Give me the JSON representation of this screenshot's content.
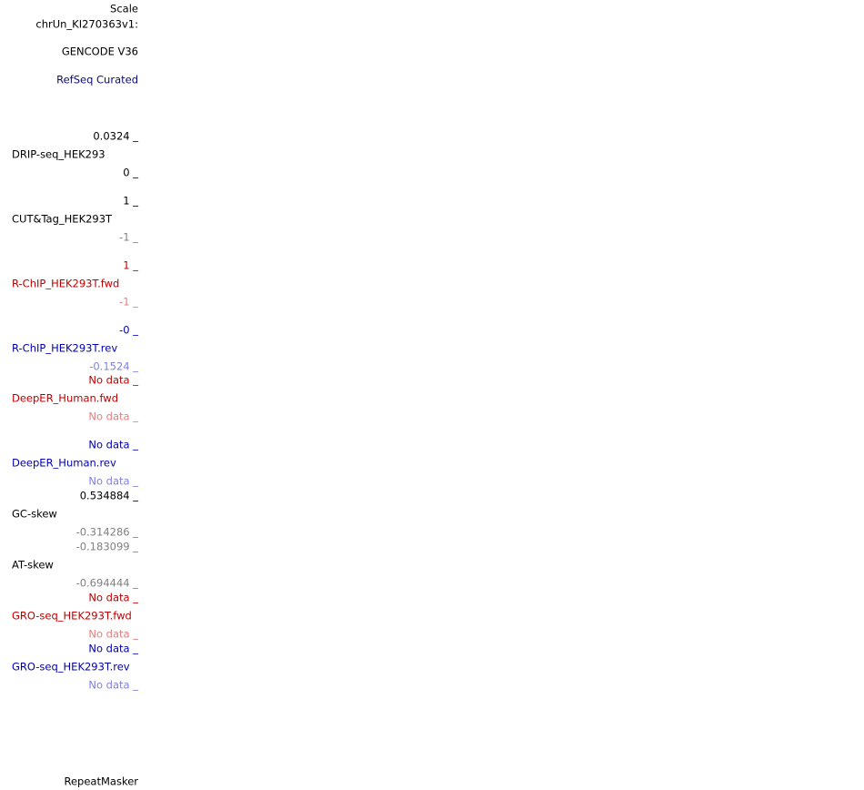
{
  "header": {
    "scale": "Scale",
    "chrom": "chrUn_KI270363v1:"
  },
  "gene_tracks": [
    {
      "name": "GENCODE V36",
      "color": "#000000"
    },
    {
      "name": "RefSeq Curated",
      "color": "#0c0c78"
    }
  ],
  "signal_tracks": [
    {
      "name": "DRIP-seq_HEK293",
      "max": "0.0324 _",
      "min": "0 _",
      "color": "#000000",
      "min_color": "#000000"
    },
    {
      "name": "CUT&Tag_HEK293T",
      "max": "1 _",
      "min": "-1 _",
      "color": "#000000",
      "min_color": "#808080"
    },
    {
      "name": "R-ChIP_HEK293T.fwd",
      "max": "1 _",
      "min": "-1 _",
      "color": "#c00000",
      "min_color": "#e08080"
    },
    {
      "name": "R-ChIP_HEK293T.rev",
      "max": "-0 _",
      "min": "-0.1524 _",
      "color": "#0000b0",
      "min_color": "#8080e0"
    },
    {
      "name": "DeepER_Human.fwd",
      "max": "No data _",
      "min": "No data _",
      "color": "#c00000",
      "min_color": "#e08080"
    },
    {
      "name": "DeepER_Human.rev",
      "max": "No data _",
      "min": "No data _",
      "color": "#0000b0",
      "min_color": "#8080e0"
    },
    {
      "name": "GC-skew",
      "max": "0.534884 _",
      "min": "-0.314286 _",
      "color": "#000000",
      "min_color": "#808080"
    },
    {
      "name": "AT-skew",
      "max": "-0.183099 _",
      "min": "-0.694444 _",
      "color": "#808080",
      "min_color": "#808080",
      "name_color": "#000000"
    },
    {
      "name": "GRO-seq_HEK293T.fwd",
      "max": "No data _",
      "min": "No data _",
      "color": "#c00000",
      "min_color": "#e08080"
    },
    {
      "name": "GRO-seq_HEK293T.rev",
      "max": "No data _",
      "min": "No data _",
      "color": "#0000b0",
      "min_color": "#8080e0"
    }
  ],
  "footer_track": {
    "name": "RepeatMasker",
    "color": "#000000"
  }
}
